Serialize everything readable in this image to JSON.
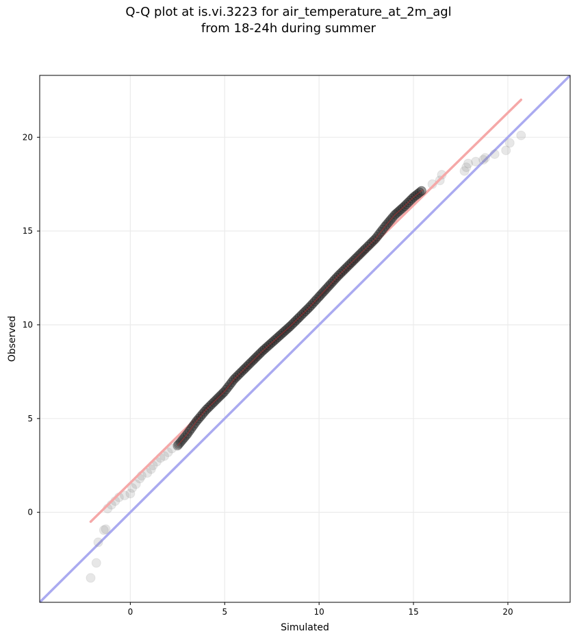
{
  "chart_data": {
    "type": "scatter",
    "title": "Q-Q plot at is.vi.3223 for air_temperature_at_2m_agl",
    "subtitle": "from 18-24h during summer",
    "xlabel": "Simulated",
    "ylabel": "Observed",
    "xlim": [
      -4.8,
      23.3
    ],
    "ylim": [
      -4.8,
      23.3
    ],
    "xticks": [
      0,
      5,
      10,
      15,
      20
    ],
    "yticks": [
      0,
      5,
      10,
      15,
      20
    ],
    "grid": true,
    "reference_line": {
      "x": [
        -4.8,
        23.3
      ],
      "y": [
        -4.8,
        23.3
      ],
      "color": "#aaaaf0"
    },
    "fit_line": {
      "x": [
        -2.1,
        20.7
      ],
      "y": [
        -0.5,
        22.0
      ],
      "color": "#f5a8a8"
    },
    "outer_points": {
      "x": [
        -2.1,
        -1.8,
        -1.7,
        -1.4,
        -1.3,
        -1.2,
        -1.0,
        -0.8,
        -0.6,
        -0.3,
        0.0,
        0.1,
        0.3,
        0.5,
        0.6,
        0.9,
        1.1,
        1.2,
        1.4,
        1.6,
        1.8,
        2.0,
        2.2,
        2.5,
        16.0,
        16.4,
        16.5,
        17.7,
        17.8,
        17.9,
        18.3,
        18.7,
        18.8,
        19.3,
        19.9,
        20.1,
        20.7
      ],
      "y": [
        -3.5,
        -2.7,
        -1.6,
        -0.95,
        -0.9,
        0.2,
        0.4,
        0.6,
        0.8,
        0.9,
        1.0,
        1.3,
        1.5,
        1.8,
        1.95,
        2.1,
        2.3,
        2.5,
        2.7,
        2.9,
        3.0,
        3.2,
        3.4,
        3.6,
        17.5,
        17.7,
        18.0,
        18.2,
        18.4,
        18.6,
        18.7,
        18.8,
        18.9,
        19.1,
        19.3,
        19.7,
        20.1
      ]
    },
    "core_points": {
      "x": [
        2.5,
        3.0,
        3.5,
        4.0,
        4.5,
        5.0,
        5.5,
        6.0,
        6.5,
        7.0,
        7.5,
        8.0,
        8.5,
        9.0,
        9.5,
        10.0,
        10.5,
        11.0,
        11.5,
        12.0,
        12.5,
        13.0,
        13.5,
        14.0,
        14.5,
        15.0,
        15.5
      ],
      "y": [
        3.55,
        4.15,
        4.85,
        5.45,
        5.95,
        6.45,
        7.1,
        7.6,
        8.1,
        8.6,
        9.05,
        9.5,
        9.95,
        10.45,
        10.95,
        11.5,
        12.05,
        12.6,
        13.1,
        13.6,
        14.1,
        14.6,
        15.25,
        15.85,
        16.3,
        16.8,
        17.2
      ]
    }
  }
}
